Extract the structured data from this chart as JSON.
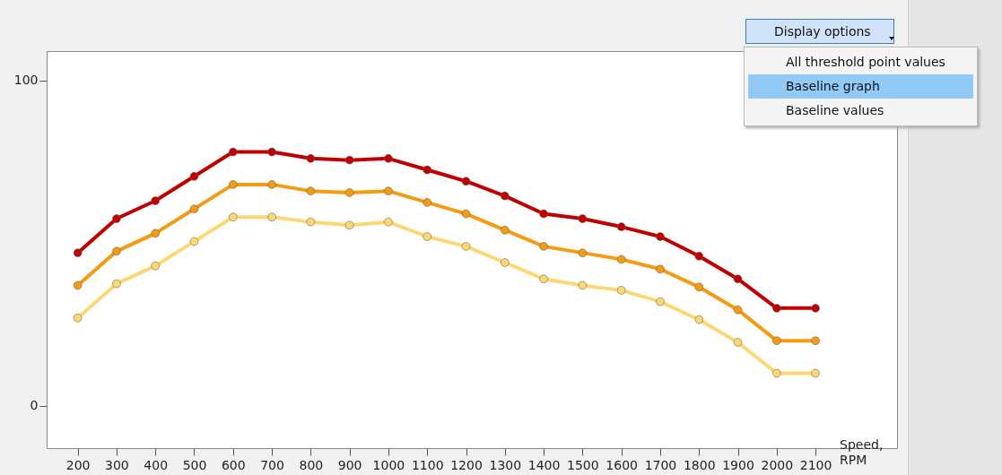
{
  "chart_data": {
    "type": "line",
    "xlabel": "Speed, RPM",
    "x": [
      200,
      300,
      400,
      500,
      600,
      700,
      800,
      900,
      1000,
      1100,
      1200,
      1300,
      1400,
      1500,
      1600,
      1700,
      1800,
      1900,
      2000,
      2100
    ],
    "xlim": [
      120,
      2310
    ],
    "xticks": [
      200,
      300,
      400,
      500,
      600,
      700,
      800,
      900,
      1000,
      1100,
      1200,
      1300,
      1400,
      1500,
      1600,
      1700,
      1800,
      1900,
      2000,
      2100
    ],
    "ylim": [
      -13,
      109
    ],
    "yticks": [
      0,
      100
    ],
    "grid": false,
    "marker": "circle",
    "line_style": "solid",
    "series": [
      {
        "color": "#c00000",
        "values": [
          47,
          57.5,
          63,
          70.5,
          78,
          78,
          76,
          75.5,
          76,
          72.5,
          69,
          64.5,
          59,
          57.5,
          55,
          52,
          46,
          39,
          30,
          30
        ]
      },
      {
        "color": "#f39c12",
        "values": [
          37,
          47.5,
          53,
          60.5,
          68,
          68,
          66,
          65.5,
          66,
          62.5,
          59,
          54,
          49,
          47,
          45,
          42,
          36.5,
          29.5,
          20,
          20
        ]
      },
      {
        "color": "#fdd872",
        "values": [
          27,
          37.5,
          43,
          50.5,
          58,
          58,
          56.5,
          55.5,
          56.5,
          52,
          49,
          44,
          39,
          37,
          35.5,
          32,
          26.5,
          19.5,
          10,
          10
        ]
      }
    ],
    "annotations": [
      "Display options",
      "All threshold point values",
      "Baseline graph",
      "Baseline values"
    ]
  }
}
